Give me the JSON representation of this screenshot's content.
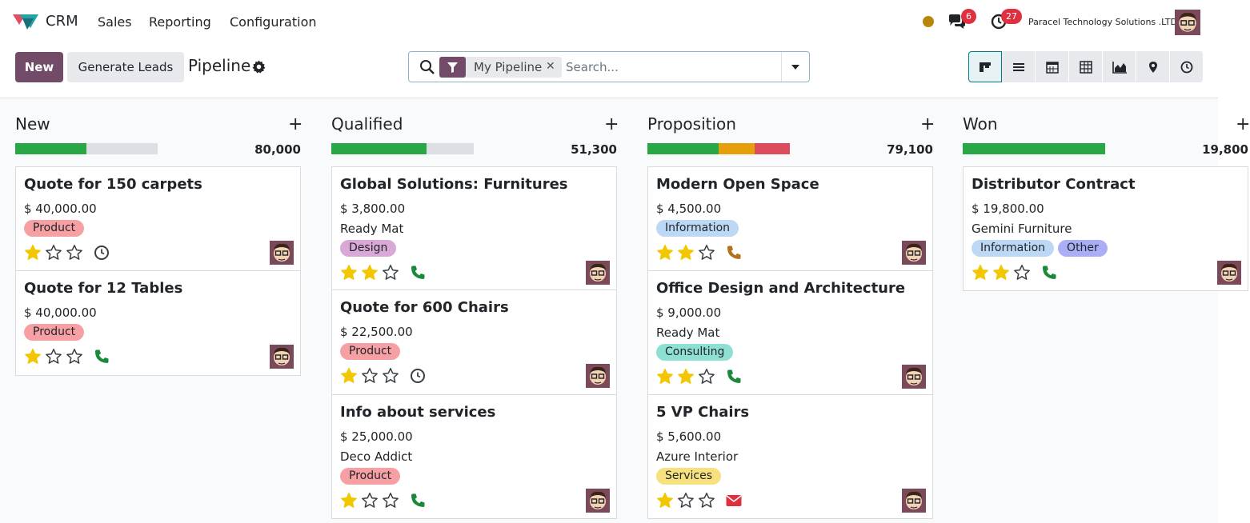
{
  "navbar": {
    "app_name": "CRM",
    "menus": [
      "Sales",
      "Reporting",
      "Configuration"
    ],
    "messages_count": "6",
    "activities_count": "27",
    "company": "Paracel Technology Solutions .LTD",
    "icons": {
      "logo": "crm-logo-icon",
      "messages": "chat-icon",
      "activities": "clock-icon",
      "status": "status-dot"
    }
  },
  "controls": {
    "new_label": "New",
    "generate_label": "Generate Leads",
    "page_title": "Pipeline",
    "search": {
      "facet": "My Pipeline",
      "placeholder": "Search..."
    },
    "views": [
      "kanban-icon",
      "list-icon",
      "calendar-icon",
      "pivot-icon",
      "graph-icon",
      "map-pin-icon",
      "activity-clock-icon"
    ]
  },
  "colors": {
    "primary": "#714b67",
    "teal": "#017e84",
    "progress_green": "#28a745",
    "progress_orange": "#e59f0b",
    "progress_red": "#dc4c5c",
    "star_yellow": "#f3c700",
    "phone_green": "#1a8a3a",
    "phone_brown": "#b3711a",
    "mail_red": "#e0303f"
  },
  "columns": [
    {
      "title": "New",
      "total": "80,000",
      "progress": [
        {
          "color": "#28a745",
          "fraction": 0.5
        },
        {
          "color": "#dcdfe3",
          "fraction": 0.5
        }
      ],
      "cards": [
        {
          "title": "Quote for 150 carpets",
          "amount": "$ 40,000.00",
          "tags": [
            {
              "label": "Product",
              "bg": "#f7a0a3"
            }
          ],
          "rating": 1,
          "activity": "clock-icon"
        },
        {
          "title": "Quote for 12 Tables",
          "amount": "$ 40,000.00",
          "tags": [
            {
              "label": "Product",
              "bg": "#f7a0a3"
            }
          ],
          "rating": 1,
          "activity": "phone-icon"
        }
      ]
    },
    {
      "title": "Qualified",
      "total": "51,300",
      "progress": [
        {
          "color": "#28a745",
          "fraction": 0.67
        },
        {
          "color": "#dcdfe3",
          "fraction": 0.33
        }
      ],
      "cards": [
        {
          "title": "Global Solutions: Furnitures",
          "amount": "$ 3,800.00",
          "company": "Ready Mat",
          "tags": [
            {
              "label": "Design",
              "bg": "#d9a8d6"
            }
          ],
          "rating": 2,
          "activity": "phone-icon"
        },
        {
          "title": "Quote for 600 Chairs",
          "amount": "$ 22,500.00",
          "tags": [
            {
              "label": "Product",
              "bg": "#f7a0a3"
            }
          ],
          "rating": 1,
          "activity": "clock-icon"
        },
        {
          "title": "Info about services",
          "amount": "$ 25,000.00",
          "company": "Deco Addict",
          "tags": [
            {
              "label": "Product",
              "bg": "#f7a0a3"
            }
          ],
          "rating": 1,
          "activity": "phone-icon"
        }
      ]
    },
    {
      "title": "Proposition",
      "total": "79,100",
      "progress": [
        {
          "color": "#28a745",
          "fraction": 0.5
        },
        {
          "color": "#e59f0b",
          "fraction": 0.25
        },
        {
          "color": "#dc4c5c",
          "fraction": 0.25
        }
      ],
      "cards": [
        {
          "title": "Modern Open Space",
          "amount": "$ 4,500.00",
          "tags": [
            {
              "label": "Information",
              "bg": "#bcd8f5"
            }
          ],
          "rating": 2,
          "activity": "phone-icon-brown"
        },
        {
          "title": "Office Design and Architecture",
          "amount": "$ 9,000.00",
          "company": "Ready Mat",
          "tags": [
            {
              "label": "Consulting",
              "bg": "#8ee0d3"
            }
          ],
          "rating": 2,
          "activity": "phone-icon"
        },
        {
          "title": "5 VP Chairs",
          "amount": "$ 5,600.00",
          "company": "Azure Interior",
          "tags": [
            {
              "label": "Services",
              "bg": "#f7e07e"
            }
          ],
          "rating": 1,
          "activity": "envelope-icon"
        }
      ]
    },
    {
      "title": "Won",
      "total": "19,800",
      "progress": [
        {
          "color": "#28a745",
          "fraction": 1.0
        }
      ],
      "cards": [
        {
          "title": "Distributor Contract",
          "amount": "$ 19,800.00",
          "company": "Gemini Furniture",
          "tags": [
            {
              "label": "Information",
              "bg": "#bcd8f5"
            },
            {
              "label": "Other",
              "bg": "#a9aef5"
            }
          ],
          "rating": 2,
          "activity": "phone-icon"
        }
      ]
    }
  ]
}
